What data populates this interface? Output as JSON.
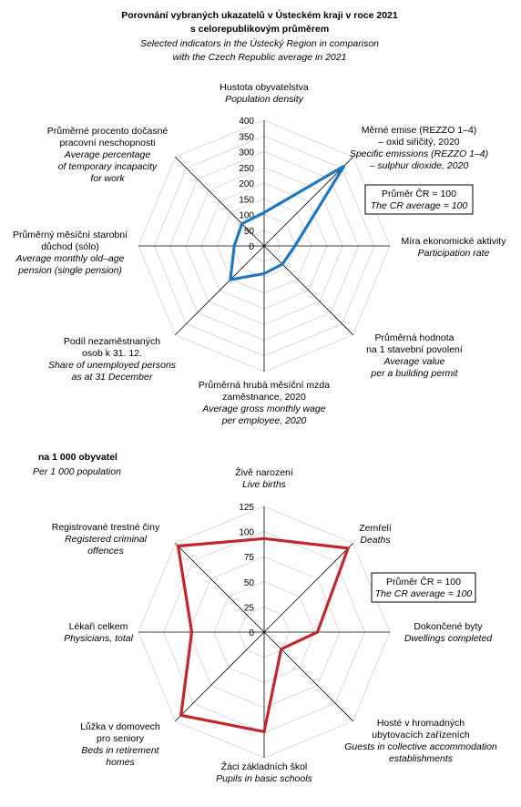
{
  "header": {
    "title_cz_1": "Porovnání vybraných ukazatelů v Ústeckém kraji v roce 2021",
    "title_cz_2": "s celorepublikovým průměrem",
    "title_en_1": "Selected indicators in the Ústecký Region in comparison",
    "title_en_2": "with the Czech Republic average in 2021"
  },
  "colors": {
    "series1": "#1f77c0",
    "series2": "#c0282d",
    "grid": "#000000"
  },
  "chart_data": [
    {
      "type": "radar",
      "rmax": 400,
      "ticks": [
        "0",
        "50",
        "100",
        "150",
        "200",
        "250",
        "300",
        "350",
        "400"
      ],
      "tick_values": [
        0,
        50,
        100,
        150,
        200,
        250,
        300,
        350,
        400
      ],
      "categories": [
        "Population density",
        "Specific emissions (REZZO 1–4) – sulphur dioxide, 2020",
        "Participation rate",
        "Average value per a building permit",
        "Average gross monthly wage per employee, 2020",
        "Share of unemployed persons as at 31 December",
        "Average monthly old–age pension (single pension)",
        "Average percentage of temporary incapacity for work"
      ],
      "values": [
        106,
        360,
        98,
        82,
        88,
        152,
        95,
        100
      ],
      "note": {
        "line1": "Průměr ČR = 100",
        "line2": "The CR average = 100"
      },
      "axis_labels": [
        {
          "cz": [
            "Hustota obyvatelstva"
          ],
          "en": [
            "Population density"
          ]
        },
        {
          "cz": [
            "Měrné emise (REZZO 1–4)",
            "– oxid siřičitý, 2020"
          ],
          "en": [
            "Specific emissions (REZZO 1–4)",
            "– sulphur dioxide, 2020"
          ]
        },
        {
          "cz": [
            "Míra ekonomické aktivity"
          ],
          "en": [
            "Participation rate"
          ]
        },
        {
          "cz": [
            "Průměrná hodnota",
            "na 1 stavební povolení"
          ],
          "en": [
            "Average value",
            "per a building permit"
          ]
        },
        {
          "cz": [
            "Průměrná hrubá měsíční mzda",
            "zaměstnance, 2020"
          ],
          "en": [
            "Average gross monthly wage",
            "per employee, 2020"
          ]
        },
        {
          "cz": [
            "Podíl nezaměstnaných",
            "osob k 31. 12."
          ],
          "en": [
            "Share of unemployed persons",
            "as at 31 December"
          ]
        },
        {
          "cz": [
            "Průměrný měsíční starobní",
            "důchod (sólo)"
          ],
          "en": [
            "Average monthly old–age",
            "pension (single pension)"
          ]
        },
        {
          "cz": [
            "Průměrné procento dočasné",
            "pracovní neschopnosti"
          ],
          "en": [
            "Average percentage",
            "of temporary incapacity",
            "for work"
          ]
        }
      ]
    },
    {
      "type": "radar",
      "title_cz": "na 1 000 obyvatel",
      "title_en": "Per 1 000 population",
      "rmax": 125,
      "ticks": [
        "0",
        "25",
        "50",
        "75",
        "100",
        "125"
      ],
      "tick_values": [
        0,
        25,
        50,
        75,
        100,
        125
      ],
      "categories": [
        "Live births",
        "Deaths",
        "Dwellings completed",
        "Guests in collective accommodation establishments",
        "Pupils in basic schools",
        "Beds in retirement homes",
        "Physicians, total",
        "Registered criminal offences"
      ],
      "values": [
        93,
        118,
        53,
        24,
        99,
        117,
        72,
        121
      ],
      "note": {
        "line1": "Průměr ČR = 100",
        "line2": "The CR average = 100"
      },
      "axis_labels": [
        {
          "cz": [
            "Živě narození"
          ],
          "en": [
            "Live births"
          ]
        },
        {
          "cz": [
            "Zemřelí"
          ],
          "en": [
            "Deaths"
          ]
        },
        {
          "cz": [
            "Dokončené byty"
          ],
          "en": [
            "Dwellings completed"
          ]
        },
        {
          "cz": [
            "Hosté v hromadných",
            "ubytovacích zařízeních"
          ],
          "en": [
            "Guests in collective accommodation",
            "establishments"
          ]
        },
        {
          "cz": [
            "Žáci základních škol"
          ],
          "en": [
            "Pupils in basic schools"
          ]
        },
        {
          "cz": [
            "Lůžka v domovech",
            "pro seniory"
          ],
          "en": [
            "Beds in retirement",
            "homes"
          ]
        },
        {
          "cz": [
            "Lékaři celkem"
          ],
          "en": [
            "Physicians, total"
          ]
        },
        {
          "cz": [
            "Registrované trestné činy"
          ],
          "en": [
            "Registered criminal",
            "offences"
          ]
        }
      ]
    }
  ]
}
